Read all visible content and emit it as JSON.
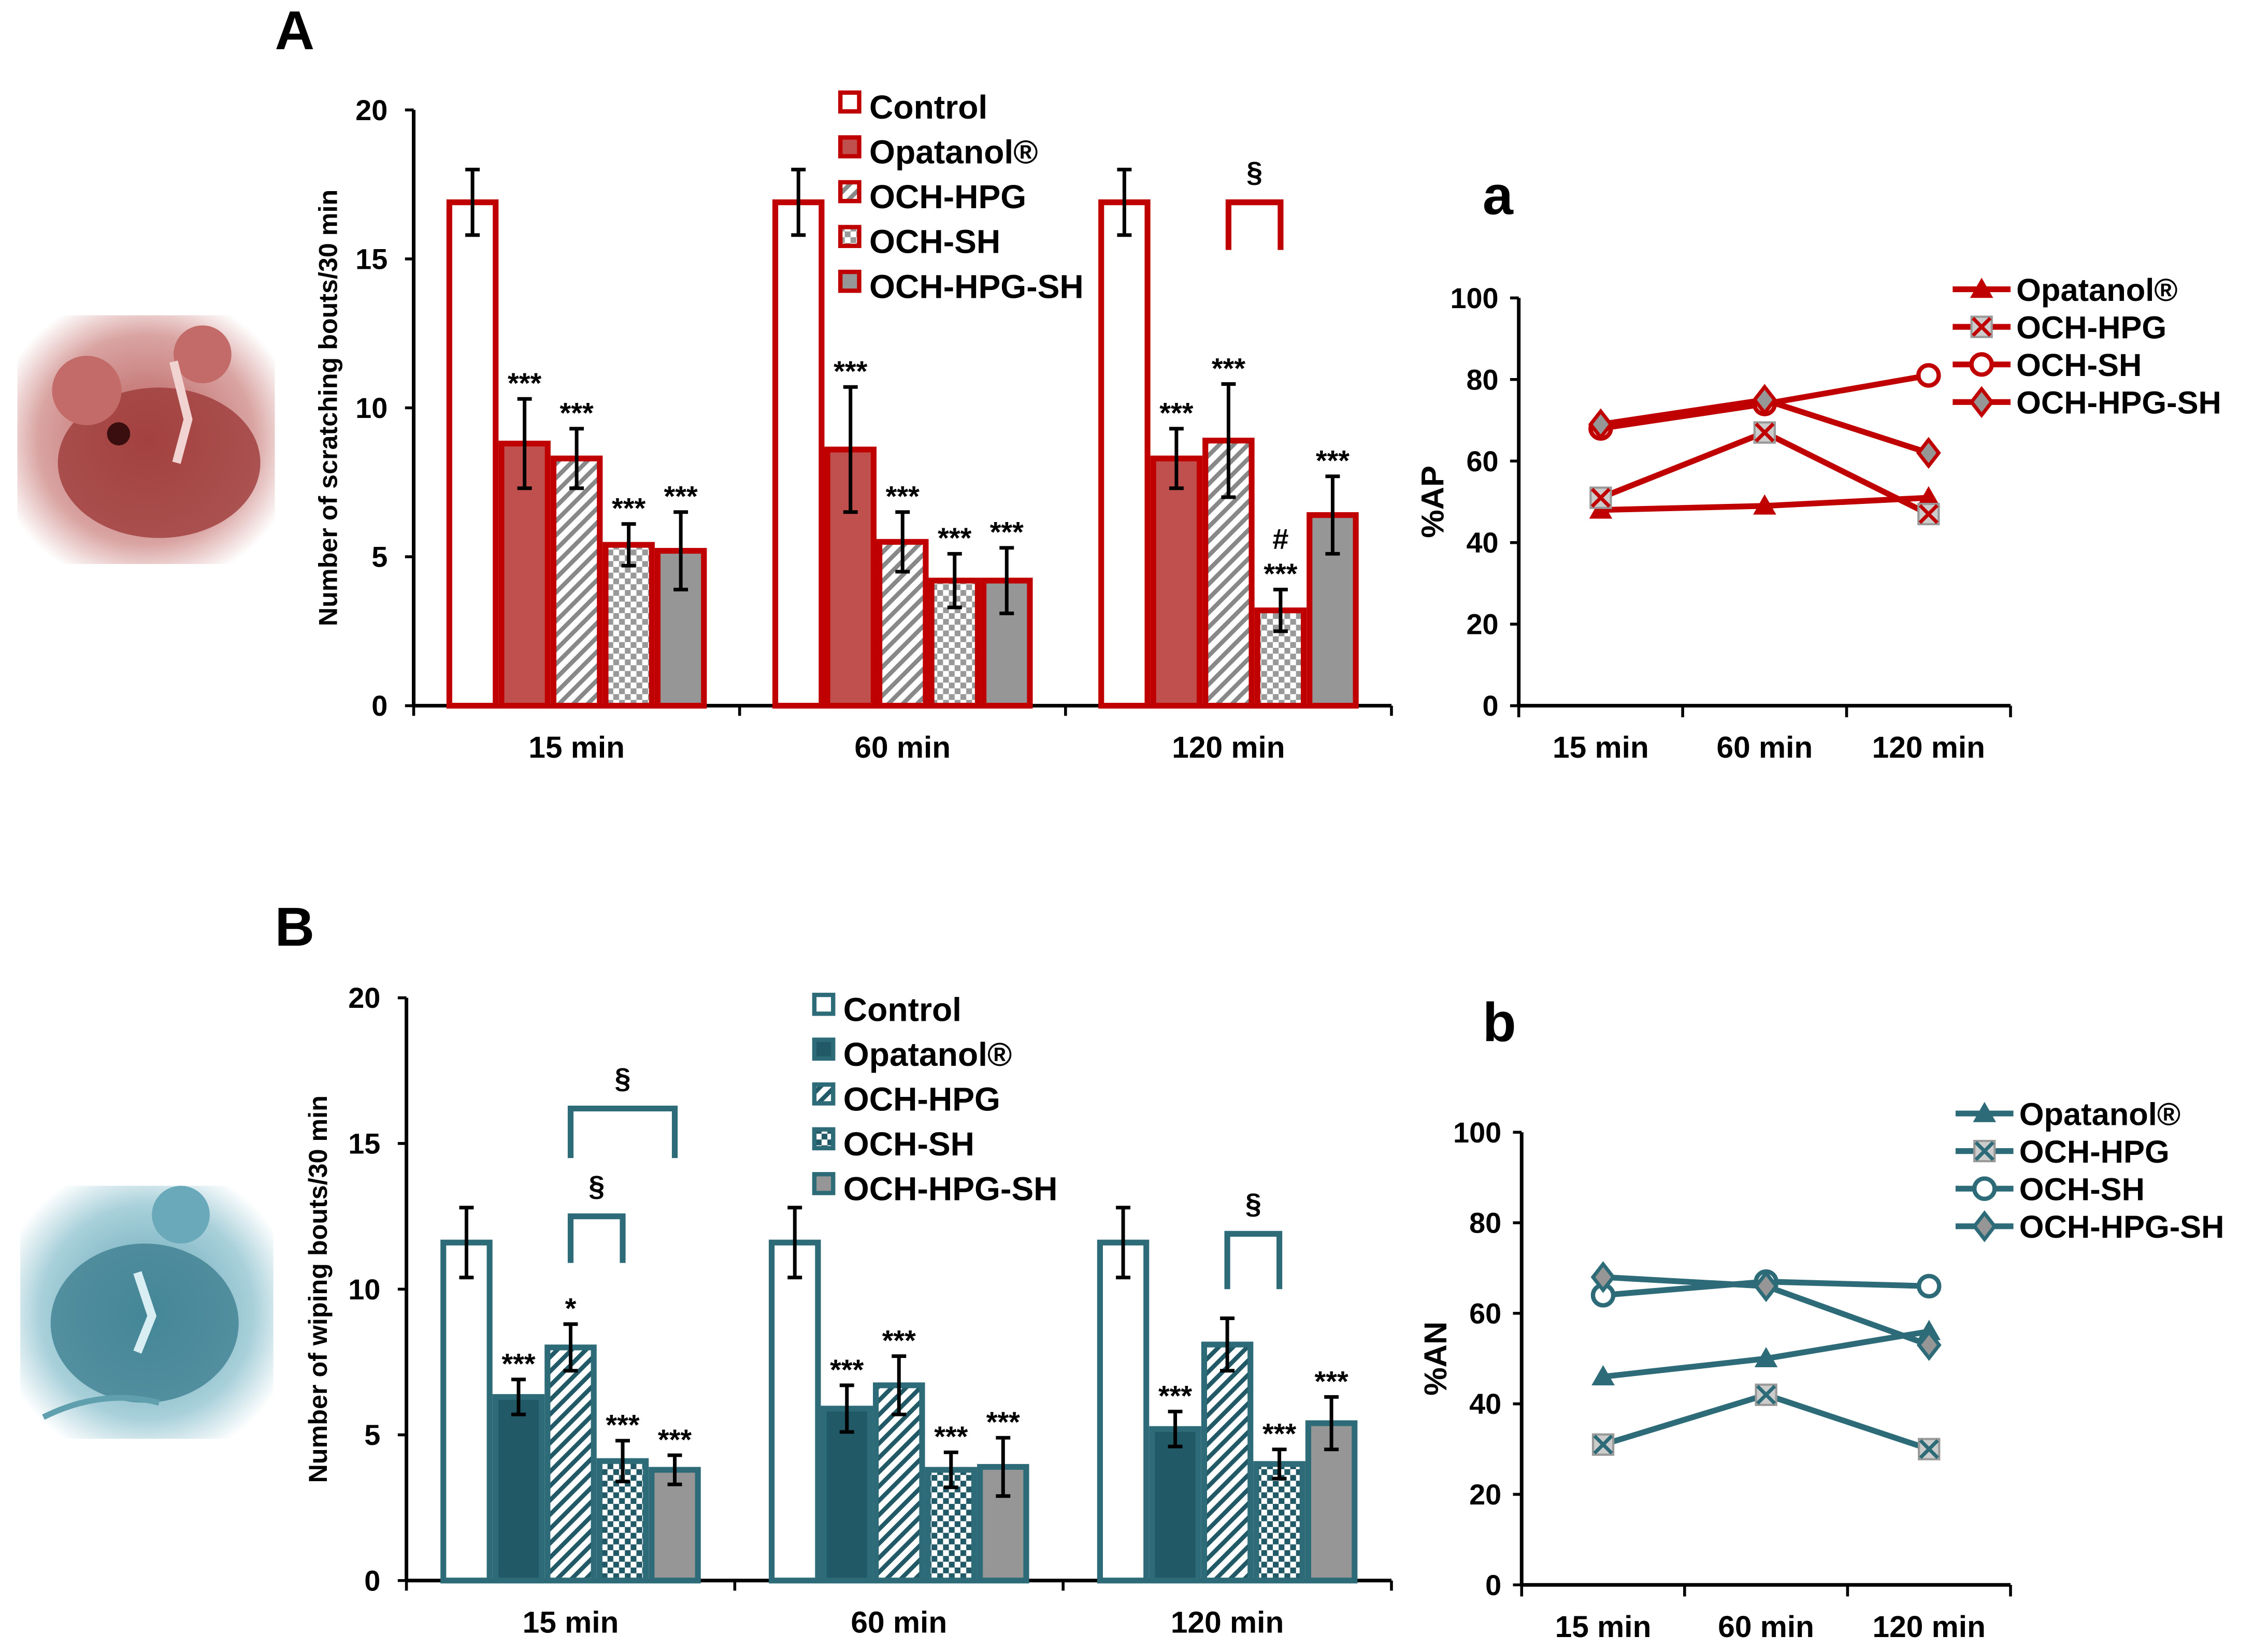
{
  "chart_data": [
    {
      "panel": "A",
      "type": "bar",
      "color": "#c00000",
      "fill_solid": "#c0504d",
      "ylabel": "Number of scratching bouts/30 min",
      "ylim": [
        0,
        20
      ],
      "yticks": [
        0,
        5,
        10,
        15,
        20
      ],
      "categories": [
        "15 min",
        "60 min",
        "120 min"
      ],
      "legend": [
        "Control",
        "Opatanol®",
        "OCH-HPG",
        "OCH-SH",
        "OCH-HPG-SH"
      ],
      "series": [
        {
          "name": "Control",
          "values": [
            16.9,
            16.9,
            16.9
          ],
          "errors": [
            1.1,
            1.1,
            1.1
          ],
          "sig": [
            "",
            "",
            ""
          ]
        },
        {
          "name": "Opatanol®",
          "values": [
            8.8,
            8.6,
            8.3
          ],
          "errors": [
            1.5,
            2.1,
            1.0
          ],
          "sig": [
            "***",
            "***",
            "***"
          ]
        },
        {
          "name": "OCH-HPG",
          "values": [
            8.3,
            5.5,
            8.9
          ],
          "errors": [
            1.0,
            1.0,
            1.9
          ],
          "sig": [
            "***",
            "***",
            "***"
          ]
        },
        {
          "name": "OCH-SH",
          "values": [
            5.4,
            4.2,
            3.2
          ],
          "errors": [
            0.7,
            0.9,
            0.7
          ],
          "sig": [
            "***",
            "***",
            "***"
          ]
        },
        {
          "name": "OCH-HPG-SH",
          "values": [
            5.2,
            4.2,
            6.4
          ],
          "errors": [
            1.3,
            1.1,
            1.3
          ],
          "sig": [
            "***",
            "***",
            "***"
          ]
        }
      ],
      "extra_marks": [
        {
          "category": 2,
          "series": 3,
          "label": "#"
        }
      ],
      "brackets": [
        {
          "category": 2,
          "from": 2,
          "to": 3,
          "level": 16.9,
          "bottom": 15.3,
          "label": "§"
        }
      ]
    },
    {
      "panel": "B",
      "type": "bar",
      "color": "#2e6b78",
      "fill_solid": "#215967",
      "ylabel": "Number of wiping bouts/30 min",
      "ylim": [
        0,
        20
      ],
      "yticks": [
        0,
        5,
        10,
        15,
        20
      ],
      "categories": [
        "15 min",
        "60 min",
        "120 min"
      ],
      "legend": [
        "Control",
        "Opatanol®",
        "OCH-HPG",
        "OCH-SH",
        "OCH-HPG-SH"
      ],
      "series": [
        {
          "name": "Control",
          "values": [
            11.6,
            11.6,
            11.6
          ],
          "errors": [
            1.2,
            1.2,
            1.2
          ],
          "sig": [
            "",
            "",
            ""
          ]
        },
        {
          "name": "Opatanol®",
          "values": [
            6.3,
            5.9,
            5.2
          ],
          "errors": [
            0.6,
            0.8,
            0.6
          ],
          "sig": [
            "***",
            "***",
            "***"
          ]
        },
        {
          "name": "OCH-HPG",
          "values": [
            8.0,
            6.7,
            8.1
          ],
          "errors": [
            0.8,
            1.0,
            0.9
          ],
          "sig": [
            "*",
            "***",
            ""
          ]
        },
        {
          "name": "OCH-SH",
          "values": [
            4.1,
            3.8,
            4.0
          ],
          "errors": [
            0.7,
            0.6,
            0.5
          ],
          "sig": [
            "***",
            "***",
            "***"
          ]
        },
        {
          "name": "OCH-HPG-SH",
          "values": [
            3.8,
            3.9,
            5.4
          ],
          "errors": [
            0.5,
            1.0,
            0.9
          ],
          "sig": [
            "***",
            "***",
            "***"
          ]
        }
      ],
      "extra_marks": [],
      "brackets": [
        {
          "category": 0,
          "from": 2,
          "to": 4,
          "level": 16.2,
          "bottom": 14.5,
          "label": "§"
        },
        {
          "category": 0,
          "from": 2,
          "to": 3,
          "level": 12.5,
          "bottom": 10.9,
          "label": "§"
        },
        {
          "category": 2,
          "from": 2,
          "to": 3,
          "level": 11.9,
          "bottom": 10.0,
          "label": "§"
        }
      ]
    },
    {
      "panel": "a",
      "type": "line",
      "color": "#c00000",
      "ylabel": "%AP",
      "ylim": [
        0,
        100
      ],
      "yticks": [
        0,
        20,
        40,
        60,
        80,
        100
      ],
      "categories": [
        "15 min",
        "60 min",
        "120 min"
      ],
      "series": [
        {
          "name": "Opatanol®",
          "marker": "triangle",
          "values": [
            48,
            49,
            51
          ]
        },
        {
          "name": "OCH-HPG",
          "marker": "x-square",
          "values": [
            51,
            67,
            47
          ]
        },
        {
          "name": "OCH-SH",
          "marker": "circle",
          "values": [
            68,
            74,
            81
          ]
        },
        {
          "name": "OCH-HPG-SH",
          "marker": "diamond",
          "values": [
            69,
            75,
            62
          ]
        }
      ],
      "legend_position": "top-right"
    },
    {
      "panel": "b",
      "type": "line",
      "color": "#2e6b78",
      "ylabel": "%AN",
      "ylim": [
        0,
        100
      ],
      "yticks": [
        0,
        20,
        40,
        60,
        80,
        100
      ],
      "categories": [
        "15 min",
        "60 min",
        "120 min"
      ],
      "series": [
        {
          "name": "Opatanol®",
          "marker": "triangle",
          "values": [
            46,
            50,
            56
          ]
        },
        {
          "name": "OCH-HPG",
          "marker": "x-square",
          "values": [
            31,
            42,
            30
          ]
        },
        {
          "name": "OCH-SH",
          "marker": "circle",
          "values": [
            64,
            67,
            66
          ]
        },
        {
          "name": "OCH-HPG-SH",
          "marker": "diamond",
          "values": [
            68,
            66,
            53
          ]
        }
      ],
      "legend_position": "top-right"
    }
  ],
  "colors": {
    "red": "#c00000",
    "teal": "#2e6b78",
    "gray": "#969696"
  }
}
